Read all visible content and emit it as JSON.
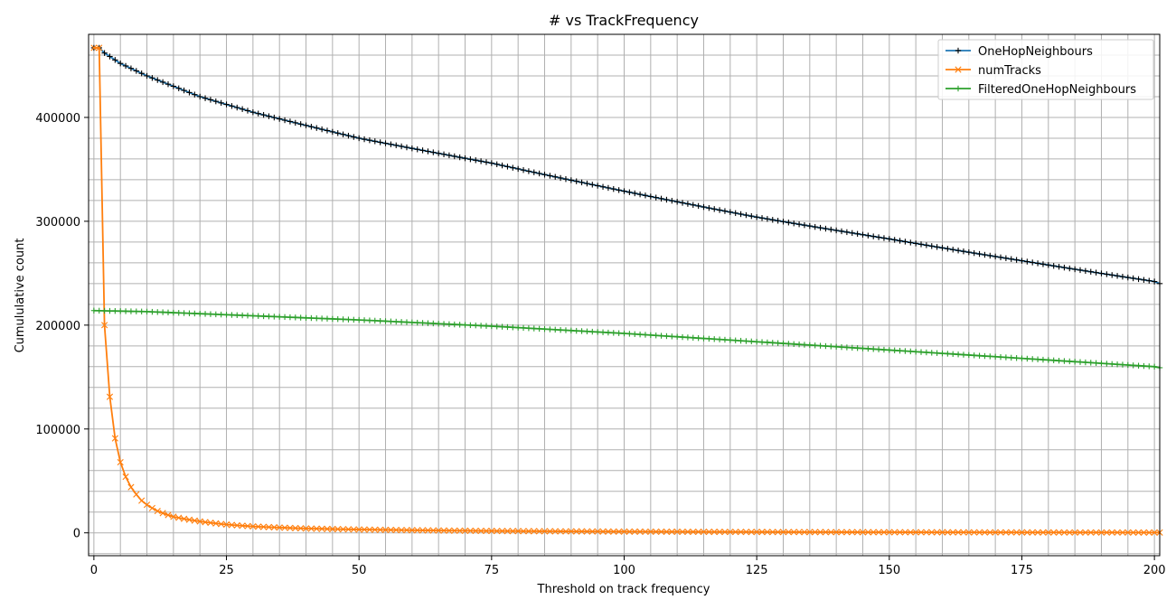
{
  "chart_data": {
    "type": "line",
    "title": "# vs TrackFrequency",
    "xlabel": "Threshold on track frequency",
    "ylabel": "Cumululative count",
    "xlim": [
      -1,
      201
    ],
    "ylim": [
      -22000,
      480000
    ],
    "x_ticks": [
      0,
      25,
      50,
      75,
      100,
      125,
      150,
      175,
      200
    ],
    "y_ticks": [
      0,
      100000,
      200000,
      300000,
      400000
    ],
    "x_minor_step": 5,
    "y_minor_step": 20000,
    "grid": true,
    "legend_position": "top-right",
    "x_range": {
      "start": 0,
      "end": 201,
      "step": 1
    },
    "series": [
      {
        "name": "OneHopNeighbours",
        "color": "#1f77b4",
        "marker": "plus",
        "marker_color": "#000000",
        "anchors": [
          [
            0,
            467000
          ],
          [
            1,
            467000
          ],
          [
            2,
            462000
          ],
          [
            5,
            452000
          ],
          [
            10,
            440000
          ],
          [
            20,
            420000
          ],
          [
            30,
            405000
          ],
          [
            50,
            380000
          ],
          [
            75,
            356000
          ],
          [
            100,
            329000
          ],
          [
            125,
            304000
          ],
          [
            150,
            283000
          ],
          [
            175,
            262000
          ],
          [
            200,
            242000
          ],
          [
            201,
            240000
          ]
        ]
      },
      {
        "name": "numTracks",
        "color": "#ff7f0e",
        "marker": "x",
        "anchors": [
          [
            0,
            467000
          ],
          [
            1,
            467000
          ],
          [
            2,
            200000
          ],
          [
            3,
            131000
          ],
          [
            4,
            91000
          ],
          [
            5,
            68000
          ],
          [
            6,
            54000
          ],
          [
            7,
            44000
          ],
          [
            8,
            37000
          ],
          [
            9,
            31000
          ],
          [
            10,
            27000
          ],
          [
            12,
            21000
          ],
          [
            15,
            15500
          ],
          [
            20,
            11000
          ],
          [
            25,
            8000
          ],
          [
            30,
            6200
          ],
          [
            40,
            4200
          ],
          [
            50,
            3200
          ],
          [
            75,
            1800
          ],
          [
            100,
            1200
          ],
          [
            150,
            600
          ],
          [
            200,
            300
          ],
          [
            201,
            300
          ]
        ]
      },
      {
        "name": "FilteredOneHopNeighbours",
        "color": "#2ca02c",
        "marker": "plus",
        "anchors": [
          [
            0,
            214000
          ],
          [
            10,
            213000
          ],
          [
            25,
            210000
          ],
          [
            50,
            205000
          ],
          [
            75,
            199000
          ],
          [
            100,
            192000
          ],
          [
            125,
            184000
          ],
          [
            150,
            176000
          ],
          [
            175,
            168000
          ],
          [
            200,
            160000
          ],
          [
            201,
            159000
          ]
        ]
      }
    ]
  }
}
